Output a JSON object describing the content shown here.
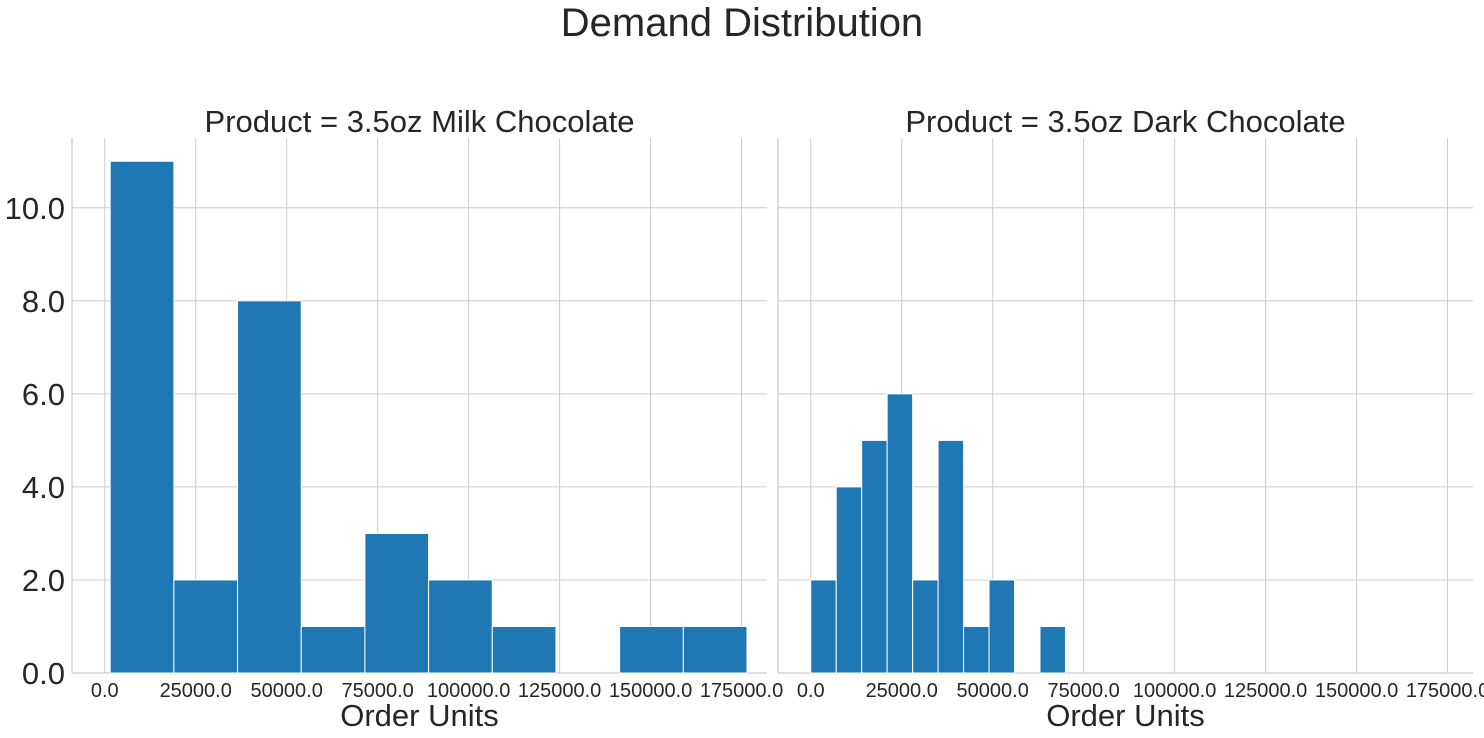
{
  "chart_data": {
    "type": "bar",
    "title": "Demand Distribution",
    "xlabel": "Order Units",
    "xlim": [
      -9000,
      182000
    ],
    "ylim": [
      0,
      11.5
    ],
    "grid": true,
    "bar_color": "#1f77b4",
    "x_ticks": [
      0,
      25000,
      50000,
      75000,
      100000,
      125000,
      150000,
      175000
    ],
    "x_tick_labels": [
      "0.0",
      "25000.0",
      "50000.0",
      "75000.0",
      "100000.0",
      "125000.0",
      "150000.0",
      "175000.0"
    ],
    "y_ticks": [
      0,
      2,
      4,
      6,
      8,
      10
    ],
    "y_tick_labels": [
      "0.0",
      "2.0",
      "4.0",
      "6.0",
      "8.0",
      "10.0"
    ],
    "panels": [
      {
        "title": "Product = 3.5oz Milk Chocolate",
        "bin_edges": [
          1500,
          19000,
          36500,
          54000,
          71500,
          89000,
          106500,
          124000,
          141500,
          159000,
          176500
        ],
        "counts": [
          11,
          2,
          8,
          1,
          3,
          2,
          1,
          0,
          1,
          1
        ]
      },
      {
        "title": "Product = 3.5oz Dark Chocolate",
        "bin_edges": [
          0,
          7000,
          14000,
          21000,
          28000,
          35000,
          42000,
          49000,
          56000,
          63000,
          70000
        ],
        "counts": [
          2,
          4,
          5,
          6,
          2,
          5,
          1,
          2,
          0,
          1
        ]
      }
    ]
  }
}
